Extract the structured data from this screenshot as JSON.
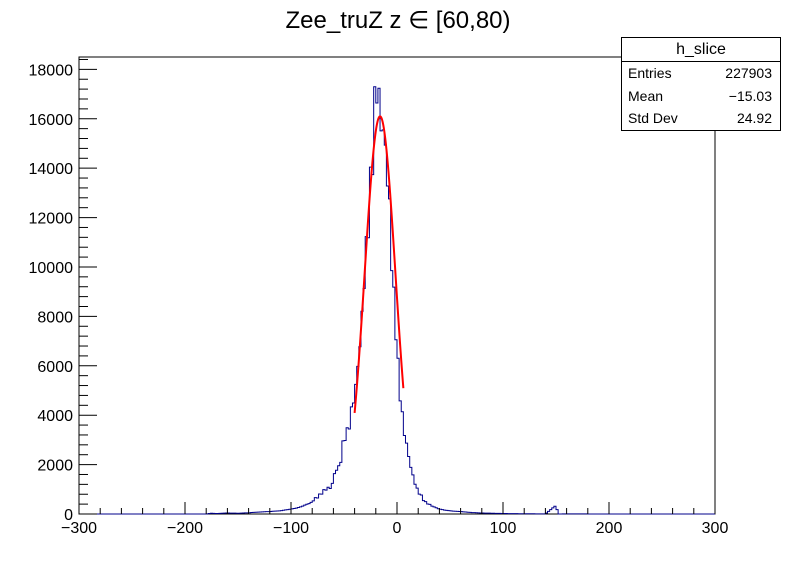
{
  "chart_data": {
    "type": "histogram",
    "title": "Zee_truZ z  ∈ [60,80)",
    "xlim": [
      -300,
      300
    ],
    "ylim": [
      0,
      18500
    ],
    "x_ticks": [
      -300,
      -200,
      -100,
      0,
      100,
      200,
      300
    ],
    "y_ticks": [
      0,
      2000,
      4000,
      6000,
      8000,
      10000,
      12000,
      14000,
      16000,
      18000
    ],
    "bin_width": 2,
    "histogram": {
      "name": "h_slice",
      "color": "#00008b",
      "x_start": -300,
      "bin_width": 2,
      "points": [
        [
          -180,
          0
        ],
        [
          -176,
          30
        ],
        [
          -170,
          20
        ],
        [
          -160,
          40
        ],
        [
          -150,
          30
        ],
        [
          -140,
          50
        ],
        [
          -130,
          80
        ],
        [
          -120,
          100
        ],
        [
          -110,
          130
        ],
        [
          -100,
          200
        ],
        [
          -95,
          240
        ],
        [
          -90,
          300
        ],
        [
          -86,
          380
        ],
        [
          -82,
          430
        ],
        [
          -78,
          600
        ],
        [
          -74,
          720
        ],
        [
          -70,
          900
        ],
        [
          -66,
          1050
        ],
        [
          -62,
          1050
        ],
        [
          -58,
          1800
        ],
        [
          -54,
          1900
        ],
        [
          -50,
          3100
        ],
        [
          -47,
          3300
        ],
        [
          -44,
          3800
        ],
        [
          -42,
          4500
        ],
        [
          -40,
          4800
        ],
        [
          -38,
          5500
        ],
        [
          -36,
          6500
        ],
        [
          -34,
          7200
        ],
        [
          -32,
          8800
        ],
        [
          -30,
          10200
        ],
        [
          -28,
          11200
        ],
        [
          -26,
          12500
        ],
        [
          -24,
          14000
        ],
        [
          -22,
          15200
        ],
        [
          -20,
          17600
        ],
        [
          -18,
          17300
        ],
        [
          -16,
          16000
        ],
        [
          -14,
          15700
        ],
        [
          -12,
          15200
        ],
        [
          -10,
          14400
        ],
        [
          -8,
          12800
        ],
        [
          -6,
          11800
        ],
        [
          -4,
          8900
        ],
        [
          -2,
          8500
        ],
        [
          0,
          6500
        ],
        [
          2,
          5400
        ],
        [
          4,
          4300
        ],
        [
          6,
          3600
        ],
        [
          8,
          3000
        ],
        [
          10,
          2600
        ],
        [
          12,
          2100
        ],
        [
          14,
          1700
        ],
        [
          16,
          1400
        ],
        [
          18,
          1100
        ],
        [
          20,
          900
        ],
        [
          22,
          800
        ],
        [
          24,
          650
        ],
        [
          26,
          500
        ],
        [
          30,
          400
        ],
        [
          34,
          300
        ],
        [
          40,
          200
        ],
        [
          46,
          150
        ],
        [
          52,
          120
        ],
        [
          60,
          100
        ],
        [
          70,
          60
        ],
        [
          80,
          40
        ],
        [
          90,
          30
        ],
        [
          100,
          20
        ],
        [
          120,
          10
        ],
        [
          140,
          5
        ],
        [
          150,
          350
        ],
        [
          152,
          0
        ],
        [
          160,
          5
        ],
        [
          200,
          0
        ]
      ]
    },
    "fit": {
      "color": "#ff0000",
      "model": "gaussian",
      "amplitude": 16100,
      "mean": -16,
      "sigma": 14.5,
      "x_range": [
        -40,
        6
      ]
    }
  },
  "stats_box": {
    "title": "h_slice",
    "rows": [
      {
        "label": "Entries",
        "value": "227903"
      },
      {
        "label": "Mean",
        "value": "−15.03"
      },
      {
        "label": "Std Dev",
        "value": "24.92"
      }
    ]
  }
}
